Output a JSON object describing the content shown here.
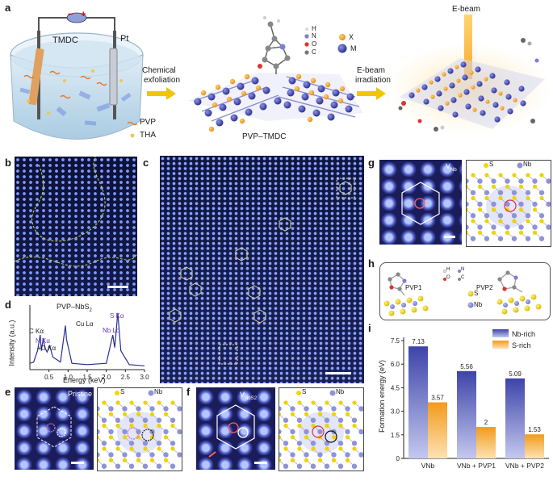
{
  "panel_labels": {
    "a": "a",
    "b": "b",
    "c": "c",
    "d": "d",
    "e": "e",
    "f": "f",
    "g": "g",
    "h": "h",
    "i": "i"
  },
  "panel_a": {
    "tmdc": "TMDC",
    "pt": "Pt",
    "pvp": "PVP",
    "tha": "THA",
    "arrow1": "Chemical",
    "arrow1b": "exfoliation",
    "legend": {
      "h": "H",
      "n": "N",
      "o": "O",
      "c": "C",
      "x": "X",
      "m": "M"
    },
    "pvp_tmdc": "PVP–TMDC",
    "arrow2": "E-beam",
    "arrow2b": "irradiation",
    "ebeam": "E-beam",
    "electrode_minus": "−",
    "electrode_plus": "+"
  },
  "panel_d": {
    "title": "PVP–NbS",
    "title_sub": "2",
    "ylabel": "Intensity (a.u.)",
    "xlabel": "Energy (keV)",
    "ticks": [
      "0.5",
      "1.0",
      "1.5",
      "2.0",
      "2.5",
      "3.0"
    ],
    "peaks": {
      "c": "C Kα",
      "n": "N Kα",
      "o": "O Kα",
      "cu": "Cu Lα",
      "s": "S Kα",
      "nb": "Nb Lα"
    },
    "o_prefix": "+",
    "spectrum_points": [
      [
        0,
        0.1
      ],
      [
        0.1,
        0.12
      ],
      [
        0.2,
        0.3
      ],
      [
        0.27,
        0.55
      ],
      [
        0.3,
        0.3
      ],
      [
        0.35,
        0.5
      ],
      [
        0.39,
        0.35
      ],
      [
        0.45,
        0.28
      ],
      [
        0.52,
        0.38
      ],
      [
        0.6,
        0.2
      ],
      [
        0.8,
        0.12
      ],
      [
        0.93,
        0.7
      ],
      [
        0.96,
        0.48
      ],
      [
        1.1,
        0.1
      ],
      [
        1.5,
        0.08
      ],
      [
        2.0,
        0.1
      ],
      [
        2.17,
        0.55
      ],
      [
        2.22,
        0.35
      ],
      [
        2.3,
        0.9
      ],
      [
        2.38,
        0.3
      ],
      [
        2.6,
        0.08
      ],
      [
        3.0,
        0.06
      ]
    ]
  },
  "panel_e": {
    "label": "Pristine",
    "legend_s": "S",
    "legend_nb": "Nb"
  },
  "panel_f": {
    "label": "V",
    "label_sub": "NbS2",
    "legend_s": "S",
    "legend_nb": "Nb"
  },
  "panel_g": {
    "label": "V",
    "label_sub": "Nb",
    "legend_s": "S",
    "legend_nb": "Nb"
  },
  "panel_h": {
    "pvp1": "PVP1",
    "pvp2": "PVP2",
    "h": "H",
    "n": "N",
    "o": "O",
    "c": "C",
    "s": "S",
    "nb": "Nb"
  },
  "chart_data": {
    "type": "bar",
    "categories": [
      "VNb",
      "VNb + PVP1",
      "VNb + PVP2"
    ],
    "series": [
      {
        "name": "Nb-rich",
        "values": [
          7.13,
          5.56,
          5.09
        ],
        "color": "#4a52b0"
      },
      {
        "name": "S-rich",
        "values": [
          3.57,
          2,
          1.53
        ],
        "color": "#f5a623"
      }
    ],
    "value_labels": [
      [
        "7.13",
        "5.56",
        "5.09"
      ],
      [
        "3.57",
        "2",
        "1.53"
      ]
    ],
    "ylabel": "Formation energy (eV)",
    "ylim": [
      0,
      7.5
    ],
    "yticks": [
      "0",
      "1.5",
      "3.0",
      "4.5",
      "6.0",
      "7.5"
    ],
    "legend_position": "top-right"
  }
}
